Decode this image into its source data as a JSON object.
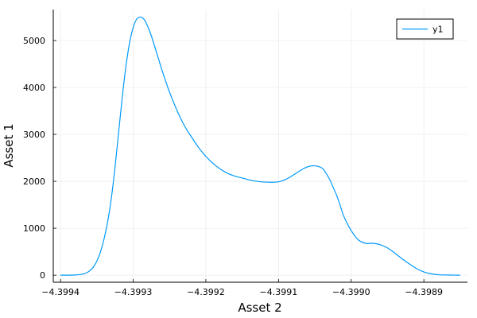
{
  "chart_data": {
    "type": "line",
    "xlabel": "Asset 2",
    "ylabel": "Asset 1",
    "xlim": [
      -4.39941,
      -4.39884
    ],
    "ylim": [
      -150,
      5660
    ],
    "x_ticks": [
      -4.3994,
      -4.3993,
      -4.3992,
      -4.3991,
      -4.399,
      -4.3989
    ],
    "x_tick_labels": [
      "−4.3994",
      "−4.3993",
      "−4.3992",
      "−4.3991",
      "−4.3990",
      "−4.3989"
    ],
    "y_ticks": [
      0,
      1000,
      2000,
      3000,
      4000,
      5000
    ],
    "y_tick_labels": [
      "0",
      "1000",
      "2000",
      "3000",
      "4000",
      "5000"
    ],
    "grid": true,
    "legend_position": "top-right",
    "series": [
      {
        "name": "y1",
        "color": "#009AFA",
        "x": [
          -4.3994,
          -4.39938,
          -4.39937,
          -4.399365,
          -4.39936,
          -4.399355,
          -4.39935,
          -4.399345,
          -4.39934,
          -4.399335,
          -4.39933,
          -4.399325,
          -4.39932,
          -4.399315,
          -4.39931,
          -4.399305,
          -4.3993,
          -4.399295,
          -4.39929,
          -4.399285,
          -4.39928,
          -4.399275,
          -4.39927,
          -4.399265,
          -4.39926,
          -4.399255,
          -4.39925,
          -4.39924,
          -4.39923,
          -4.39922,
          -4.39921,
          -4.3992,
          -4.39919,
          -4.39918,
          -4.39917,
          -4.39916,
          -4.39915,
          -4.39914,
          -4.39913,
          -4.39912,
          -4.39911,
          -4.3991,
          -4.39909,
          -4.39908,
          -4.39907,
          -4.39906,
          -4.39905,
          -4.39904,
          -4.399035,
          -4.39903,
          -4.399025,
          -4.39902,
          -4.399015,
          -4.39901,
          -4.399,
          -4.39899,
          -4.39898,
          -4.39897,
          -4.39896,
          -4.39895,
          -4.39894,
          -4.39893,
          -4.39892,
          -4.39891,
          -4.3989,
          -4.39889,
          -4.39888,
          -4.398865,
          -4.39885
        ],
        "y": [
          0,
          5,
          20,
          45,
          90,
          170,
          300,
          500,
          780,
          1150,
          1650,
          2300,
          3050,
          3800,
          4450,
          4950,
          5280,
          5460,
          5500,
          5450,
          5300,
          5100,
          4850,
          4600,
          4350,
          4120,
          3900,
          3520,
          3200,
          2950,
          2720,
          2530,
          2380,
          2260,
          2170,
          2110,
          2070,
          2030,
          2000,
          1985,
          1980,
          1990,
          2040,
          2130,
          2230,
          2310,
          2330,
          2280,
          2180,
          2050,
          1880,
          1700,
          1480,
          1250,
          950,
          750,
          680,
          680,
          650,
          580,
          470,
          350,
          240,
          140,
          70,
          30,
          10,
          3,
          0
        ]
      }
    ]
  }
}
